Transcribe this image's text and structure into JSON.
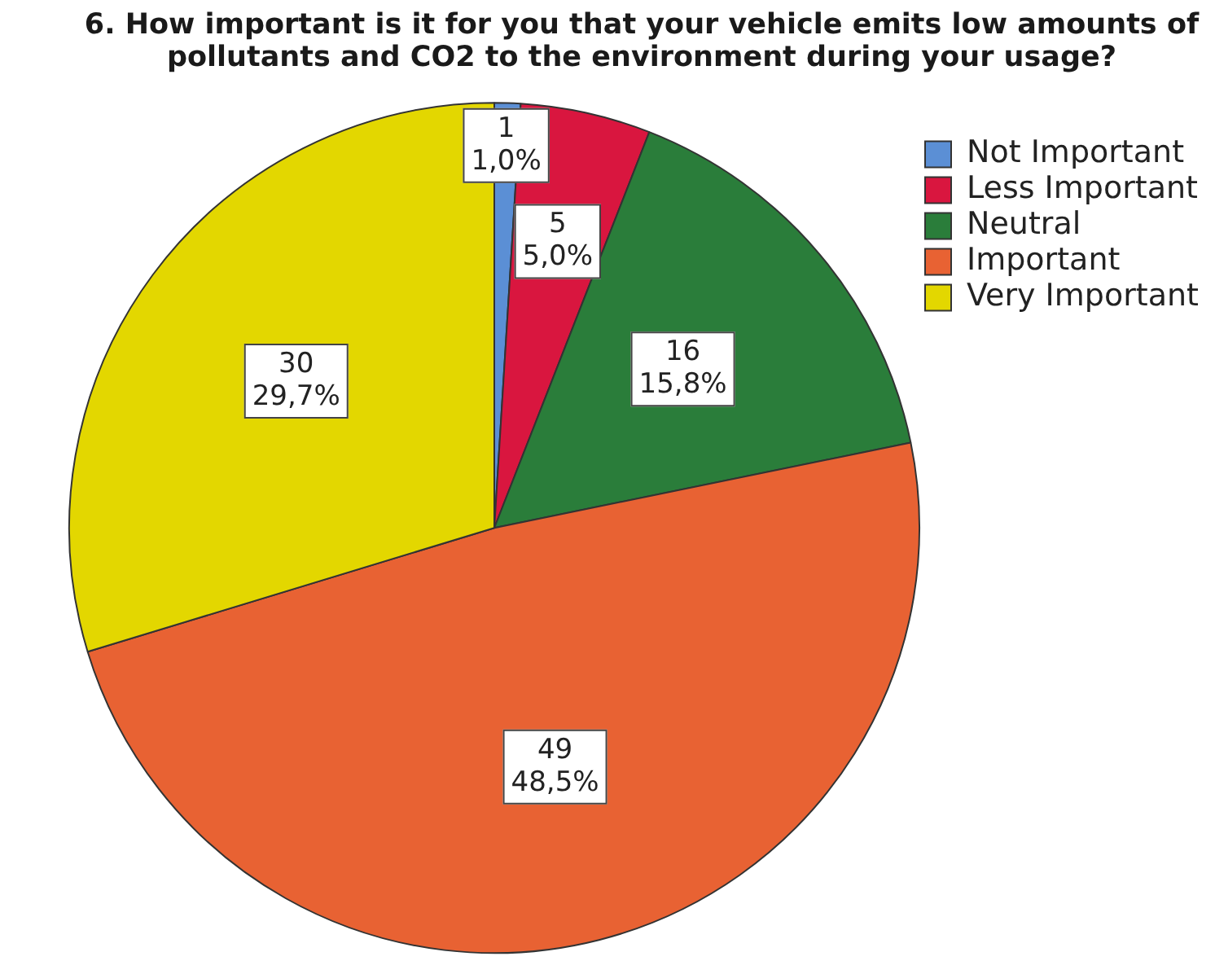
{
  "chart_data": {
    "type": "pie",
    "title": "6. How important is it for you that your vehicle emits low amounts of pollutants and CO2 to the environment during your usage?",
    "categories": [
      "Not Important",
      "Less Important",
      "Neutral",
      "Important",
      "Very Important"
    ],
    "values": [
      1,
      5,
      16,
      49,
      30
    ],
    "colors": [
      "#5b8fd5",
      "#d9163f",
      "#2a7d3a",
      "#e86233",
      "#e3d700"
    ],
    "value_labels": [
      "1\n1,0%",
      "5\n5,0%",
      "16\n15,8%",
      "49\n48,5%",
      "30\n29,7%"
    ],
    "legend": "top right"
  }
}
